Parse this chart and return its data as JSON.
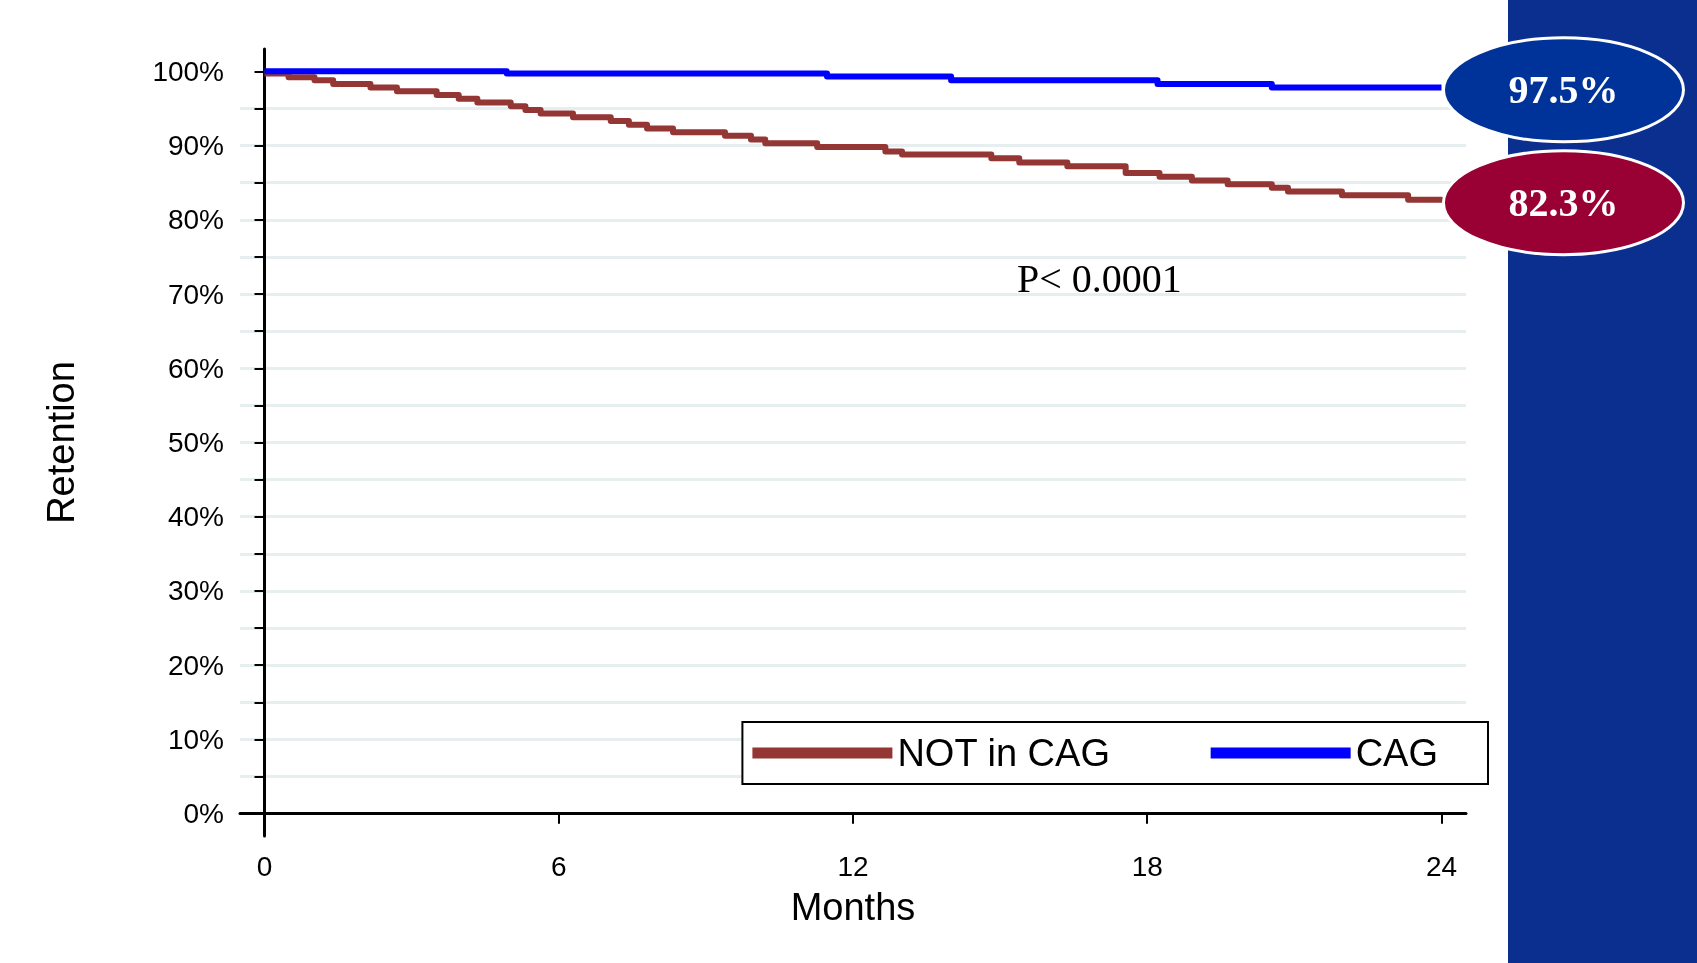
{
  "chart_data": {
    "type": "step",
    "xlabel": "Months",
    "ylabel": "Retention",
    "xlim": [
      -0.5,
      24.5
    ],
    "xticks": [
      0,
      6,
      12,
      18,
      24
    ],
    "ylim": [
      -3,
      103
    ],
    "yticks": [
      {
        "value": 0,
        "label": "0%"
      },
      {
        "value": 5,
        "label": null
      },
      {
        "value": 10,
        "label": "10%"
      },
      {
        "value": 15,
        "label": null
      },
      {
        "value": 20,
        "label": "20%"
      },
      {
        "value": 25,
        "label": null
      },
      {
        "value": 30,
        "label": "30%"
      },
      {
        "value": 35,
        "label": null
      },
      {
        "value": 40,
        "label": "40%"
      },
      {
        "value": 45,
        "label": null
      },
      {
        "value": 50,
        "label": "50%"
      },
      {
        "value": 55,
        "label": null
      },
      {
        "value": 60,
        "label": "60%"
      },
      {
        "value": 65,
        "label": null
      },
      {
        "value": 70,
        "label": "70%"
      },
      {
        "value": 75,
        "label": null
      },
      {
        "value": 80,
        "label": "80%"
      },
      {
        "value": 85,
        "label": null
      },
      {
        "value": 90,
        "label": "90%"
      },
      {
        "value": 95,
        "label": null
      },
      {
        "value": 100,
        "label": "100%"
      }
    ],
    "grid": "y",
    "legend": "bottom right",
    "line_style": "solid",
    "marker": "none",
    "series": [
      {
        "name": "NOT in CAG",
        "color": "#943634",
        "x": [
          0,
          0.49,
          1.02,
          1.4,
          2.16,
          2.7,
          3.51,
          3.96,
          4.34,
          5.02,
          5.32,
          5.63,
          6.29,
          7.06,
          7.43,
          7.8,
          8.33,
          9.39,
          9.92,
          10.21,
          11.27,
          12.66,
          13.0,
          14.82,
          15.39,
          16.37,
          17.56,
          18.25,
          18.91,
          19.64,
          20.54,
          20.87,
          21.97,
          23.32,
          24
        ],
        "values": [
          99.7,
          99.2,
          98.8,
          98.3,
          97.8,
          97.3,
          96.8,
          96.3,
          95.8,
          95.3,
          94.8,
          94.3,
          93.8,
          93.3,
          92.8,
          92.3,
          91.8,
          91.3,
          90.8,
          90.3,
          89.8,
          89.2,
          88.8,
          88.3,
          87.7,
          87.2,
          86.3,
          85.8,
          85.3,
          84.8,
          84.3,
          83.8,
          83.3,
          82.7,
          82.3
        ]
      },
      {
        "name": "CAG",
        "color": "#0000ff",
        "x": [
          0,
          4.94,
          11.47,
          14.0,
          18.21,
          20.54,
          24
        ],
        "values": [
          100,
          99.7,
          99.3,
          98.8,
          98.3,
          97.8,
          97.8
        ]
      }
    ],
    "annotations": [
      "P< 0.0001",
      {
        "text": "97.5%",
        "x": 24,
        "y": 97.5
      },
      {
        "text": "82.3%",
        "x": 24,
        "y": 82.3
      }
    ]
  }
}
